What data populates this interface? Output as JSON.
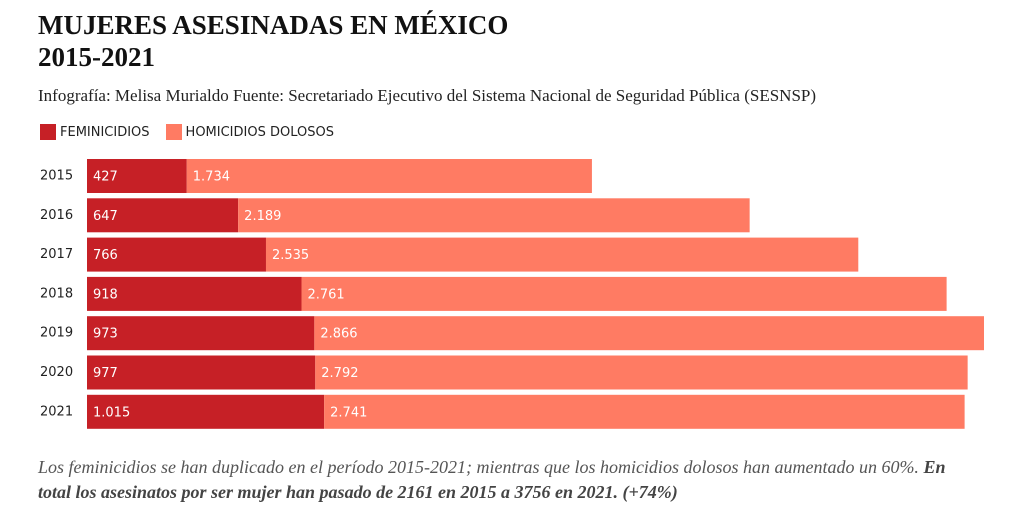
{
  "chart_data": {
    "type": "stacked-bar-horizontal",
    "title": [
      "MUJERES ASESINADAS EN MÉXICO",
      "2015-2021"
    ],
    "subtitle": "Infografía: Melisa Murialdo Fuente: Secretariado Ejecutivo del Sistema Nacional de Seguridad Pública (SESNSP)",
    "categories": [
      "2015",
      "2016",
      "2017",
      "2018",
      "2019",
      "2020",
      "2021"
    ],
    "series": [
      {
        "name": "FEMINICIDIOS",
        "color": "#c62026",
        "values": [
          427,
          647,
          766,
          918,
          973,
          977,
          1015
        ],
        "value_labels": [
          "427",
          "647",
          "766",
          "918",
          "973",
          "977",
          "1.015"
        ]
      },
      {
        "name": "HOMICIDIOS DOLOSOS",
        "color": "#ff7b63",
        "values": [
          1734,
          2189,
          2535,
          2761,
          2866,
          2792,
          2741
        ],
        "value_labels": [
          "1.734",
          "2.189",
          "2.535",
          "2.761",
          "2.866",
          "2.792",
          "2.741"
        ]
      }
    ],
    "note": "Los feminicidios se han duplicado en el período 2015-2021; mientras que los homicidios dolosos han aumentado un 60%.",
    "note_bold": "En total los asesinatos por ser mujer han pasado de 2161 en 2015 a 3756 en 2021. (+74%)"
  }
}
